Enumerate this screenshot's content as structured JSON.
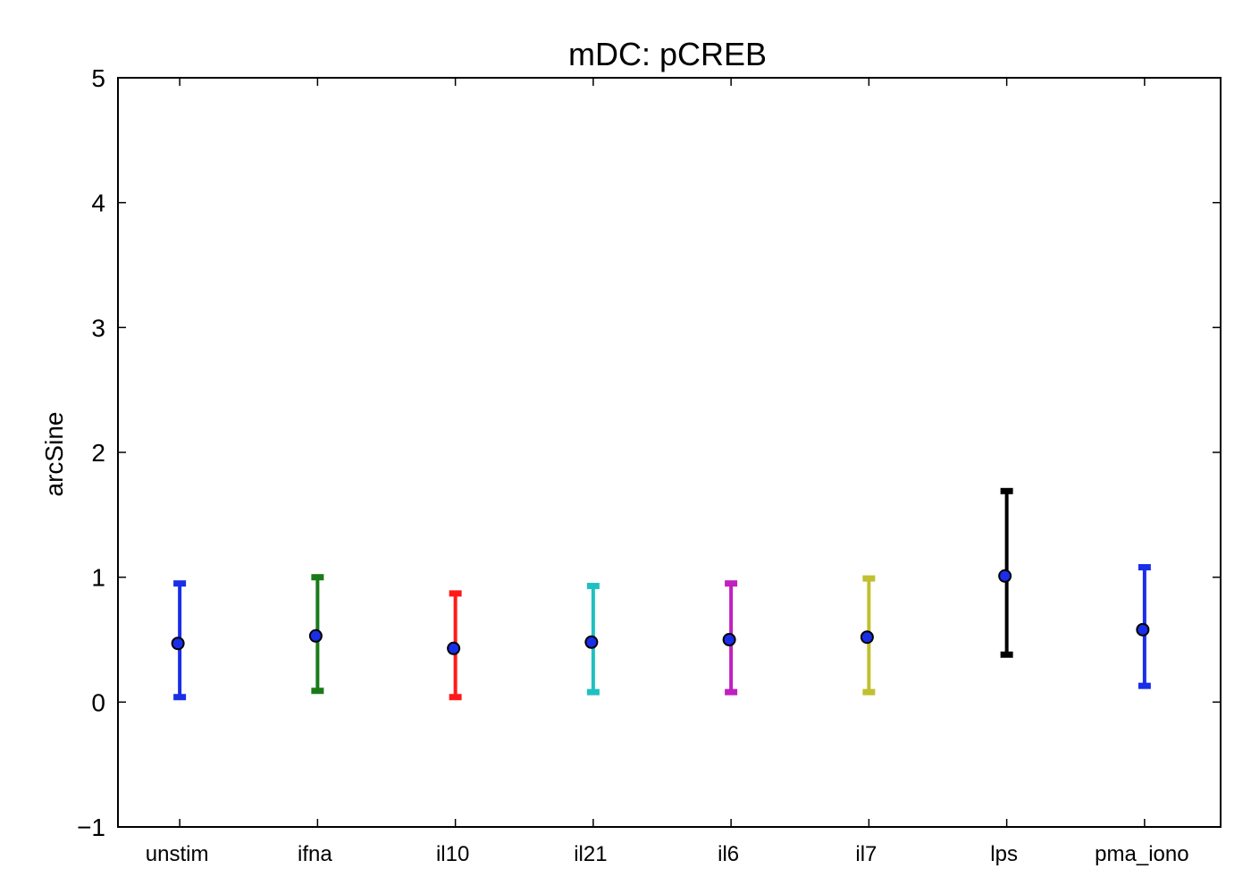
{
  "chart_data": {
    "type": "errorbar",
    "title": "mDC: pCREB",
    "xlabel": "",
    "ylabel": "arcSine",
    "ylim": [
      -1,
      5
    ],
    "yticks": [
      -1,
      0,
      1,
      2,
      3,
      4,
      5
    ],
    "grid": false,
    "categories": [
      "unstim",
      "ifna",
      "il10",
      "il21",
      "il6",
      "il7",
      "lps",
      "pma_iono"
    ],
    "means": [
      0.47,
      0.53,
      0.43,
      0.48,
      0.5,
      0.52,
      1.01,
      0.58
    ],
    "lower": [
      0.04,
      0.09,
      0.04,
      0.08,
      0.08,
      0.08,
      0.38,
      0.13
    ],
    "upper": [
      0.95,
      1.0,
      0.87,
      0.93,
      0.95,
      0.99,
      1.69,
      1.08
    ],
    "bar_colors": [
      "#1a2ee8",
      "#1a7a1a",
      "#ff1a1a",
      "#20c0c0",
      "#c020c0",
      "#c0c030",
      "#000000",
      "#1a2ee8"
    ],
    "marker_color": "#1a2ee8"
  }
}
